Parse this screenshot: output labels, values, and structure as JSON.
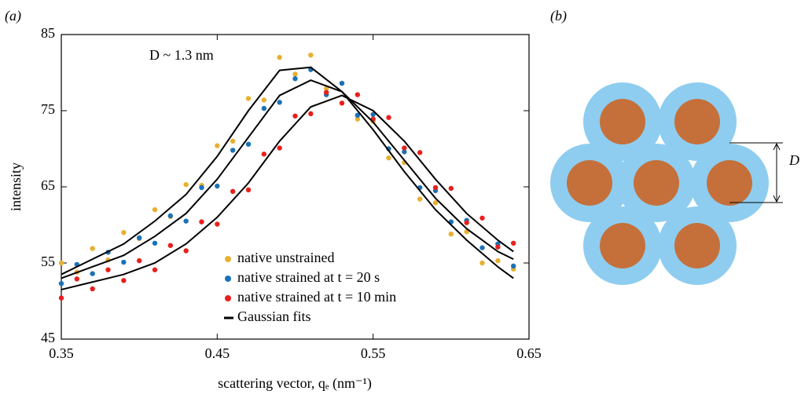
{
  "chart_data": {
    "type": "scatter",
    "panel_label": "(a)",
    "xlabel": "scattering vector, qₑ (nm⁻¹)",
    "ylabel": "intensity",
    "annotation": "D ~ 1.3 nm",
    "xlim": [
      0.35,
      0.65
    ],
    "xticks": [
      0.35,
      0.45,
      0.55,
      0.65
    ],
    "ylim": [
      45,
      85
    ],
    "yticks": [
      45,
      55,
      65,
      75,
      85
    ],
    "x": [
      0.35,
      0.36,
      0.37,
      0.38,
      0.39,
      0.4,
      0.41,
      0.42,
      0.43,
      0.44,
      0.45,
      0.46,
      0.47,
      0.48,
      0.49,
      0.5,
      0.51,
      0.52,
      0.53,
      0.54,
      0.55,
      0.56,
      0.57,
      0.58,
      0.59,
      0.6,
      0.61,
      0.62,
      0.63,
      0.64
    ],
    "series": [
      {
        "name": "native unstrained",
        "color": "#e8b030",
        "values": [
          55,
          53.8,
          56.9,
          55.4,
          59,
          58.2,
          62,
          61.1,
          65.3,
          65.2,
          70.4,
          71,
          76.6,
          76.4,
          82,
          79.8,
          82.3,
          77.9,
          78.6,
          73.9,
          73.6,
          68.8,
          68.2,
          63.4,
          62.9,
          58.8,
          59.1,
          55,
          55.3,
          54.2
        ]
      },
      {
        "name": "native strained at t = 20 s",
        "color": "#1a72b8",
        "values": [
          52.3,
          54.8,
          53.6,
          56.4,
          55.1,
          58.3,
          57.6,
          61.2,
          60.5,
          64.9,
          65.1,
          69.8,
          70.6,
          75.3,
          76.1,
          79.2,
          80.4,
          77.1,
          78.6,
          74.4,
          74.5,
          70,
          69.6,
          64.9,
          64.5,
          60.4,
          60.6,
          57,
          57.5,
          54.6
        ]
      },
      {
        "name": "native strained at t = 10 min",
        "color": "#e8201c",
        "values": [
          50.4,
          52.9,
          51.6,
          54.1,
          52.7,
          55.3,
          54.1,
          57.3,
          56.6,
          60.4,
          60.1,
          64.4,
          64.6,
          69.3,
          70.1,
          74.3,
          74.6,
          77.4,
          76,
          77.1,
          73.9,
          74.1,
          70.1,
          69.5,
          64.9,
          64.8,
          60.3,
          60.9,
          57.1,
          57.6
        ]
      }
    ],
    "fits": {
      "name": "Gaussian fits",
      "color": "#000000",
      "x": [
        0.35,
        0.37,
        0.39,
        0.41,
        0.43,
        0.45,
        0.47,
        0.49,
        0.51,
        0.53,
        0.55,
        0.57,
        0.59,
        0.61,
        0.63,
        0.64
      ],
      "curves": [
        [
          53.5,
          55.5,
          57.5,
          60.5,
          64,
          69,
          75,
          80.3,
          80.7,
          77.5,
          72.5,
          67,
          62,
          58,
          54.5,
          53
        ],
        [
          53,
          54.5,
          56,
          58.5,
          61.5,
          66,
          71.5,
          77,
          79,
          77.5,
          73.5,
          68.5,
          63.5,
          59.5,
          56.5,
          55.5
        ],
        [
          51.5,
          52.5,
          53.5,
          55,
          57.5,
          61,
          65.5,
          71,
          75.5,
          77,
          75,
          71,
          66,
          61.5,
          58,
          56.5
        ]
      ]
    }
  },
  "panel_b": {
    "label": "(b)",
    "dimension_label": "D"
  }
}
